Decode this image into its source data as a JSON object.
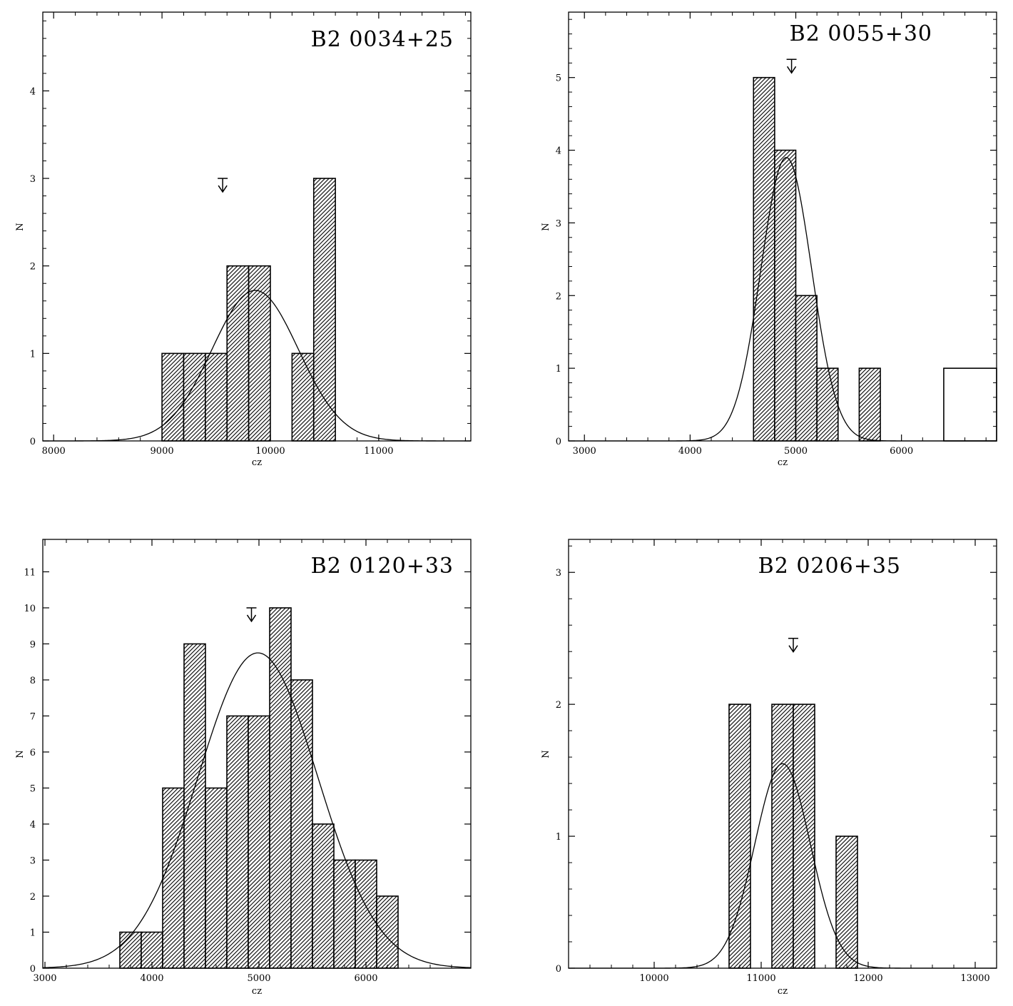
{
  "figure": {
    "hatch_color": "#000000",
    "line_color": "#000000",
    "background": "#ffffff"
  },
  "chart_data": [
    {
      "type": "bar",
      "title": "B2 0034+25",
      "xlabel": "cz",
      "ylabel": "N",
      "xlim": [
        7900,
        11850
      ],
      "ylim": [
        0,
        4.9
      ],
      "xticks": [
        8000,
        9000,
        10000,
        11000
      ],
      "yticks": [
        0,
        1,
        2,
        3,
        4
      ],
      "bin_width": 200,
      "bins": [
        {
          "x0": 9000,
          "x1": 9200,
          "count": 1,
          "filled": true
        },
        {
          "x0": 9200,
          "x1": 9400,
          "count": 1,
          "filled": true
        },
        {
          "x0": 9400,
          "x1": 9600,
          "count": 1,
          "filled": true
        },
        {
          "x0": 9600,
          "x1": 9800,
          "count": 2,
          "filled": true
        },
        {
          "x0": 9800,
          "x1": 10000,
          "count": 2,
          "filled": true
        },
        {
          "x0": 10200,
          "x1": 10400,
          "count": 1,
          "filled": true
        },
        {
          "x0": 10400,
          "x1": 10600,
          "count": 3,
          "filled": true
        }
      ],
      "gaussian": {
        "mean": 9860,
        "sigma": 400,
        "peak": 1.72
      },
      "marker": {
        "x": 9560,
        "y": 3.0
      }
    },
    {
      "type": "bar",
      "title": "B2 0055+30",
      "xlabel": "cz",
      "ylabel": "N",
      "xlim": [
        2850,
        6900
      ],
      "ylim": [
        0,
        5.9
      ],
      "xticks": [
        3000,
        4000,
        5000,
        6000
      ],
      "yticks": [
        0,
        1,
        2,
        3,
        4,
        5
      ],
      "bin_width": 200,
      "bins": [
        {
          "x0": 4600,
          "x1": 4800,
          "count": 5,
          "filled": true
        },
        {
          "x0": 4800,
          "x1": 5000,
          "count": 4,
          "filled": true
        },
        {
          "x0": 5000,
          "x1": 5200,
          "count": 2,
          "filled": true
        },
        {
          "x0": 5200,
          "x1": 5400,
          "count": 1,
          "filled": true
        },
        {
          "x0": 5600,
          "x1": 5800,
          "count": 1,
          "filled": true
        },
        {
          "x0": 6400,
          "x1": 6900,
          "count": 1,
          "filled": false
        }
      ],
      "gaussian": {
        "mean": 4910,
        "sigma": 240,
        "peak": 3.9
      },
      "marker": {
        "x": 4960,
        "y": 5.25
      }
    },
    {
      "type": "bar",
      "title": "B2 0120+33",
      "xlabel": "cz",
      "ylabel": "N",
      "xlim": [
        2980,
        6980
      ],
      "ylim": [
        0,
        11.9
      ],
      "xticks": [
        3000,
        4000,
        5000,
        6000
      ],
      "yticks": [
        0,
        1,
        2,
        3,
        4,
        5,
        6,
        7,
        8,
        9,
        10,
        11
      ],
      "bin_width": 200,
      "bins": [
        {
          "x0": 3700,
          "x1": 3900,
          "count": 1,
          "filled": true
        },
        {
          "x0": 3900,
          "x1": 4100,
          "count": 1,
          "filled": true
        },
        {
          "x0": 4100,
          "x1": 4300,
          "count": 5,
          "filled": true
        },
        {
          "x0": 4300,
          "x1": 4500,
          "count": 9,
          "filled": true
        },
        {
          "x0": 4500,
          "x1": 4700,
          "count": 5,
          "filled": true
        },
        {
          "x0": 4700,
          "x1": 4900,
          "count": 7,
          "filled": true
        },
        {
          "x0": 4900,
          "x1": 5100,
          "count": 7,
          "filled": true
        },
        {
          "x0": 5100,
          "x1": 5300,
          "count": 10,
          "filled": true
        },
        {
          "x0": 5300,
          "x1": 5500,
          "count": 8,
          "filled": true
        },
        {
          "x0": 5500,
          "x1": 5700,
          "count": 4,
          "filled": true
        },
        {
          "x0": 5700,
          "x1": 5900,
          "count": 3,
          "filled": true
        },
        {
          "x0": 5900,
          "x1": 6100,
          "count": 3,
          "filled": true
        },
        {
          "x0": 6100,
          "x1": 6300,
          "count": 2,
          "filled": true
        }
      ],
      "gaussian": {
        "mean": 4990,
        "sigma": 560,
        "peak": 8.75
      },
      "marker": {
        "x": 4930,
        "y": 10.0
      }
    },
    {
      "type": "bar",
      "title": "B2 0206+35",
      "xlabel": "cz",
      "ylabel": "N",
      "xlim": [
        9200,
        13200
      ],
      "ylim": [
        0,
        3.25
      ],
      "xticks": [
        10000,
        11000,
        12000,
        13000
      ],
      "yticks": [
        0,
        1,
        2,
        3
      ],
      "bin_width": 200,
      "bins": [
        {
          "x0": 10700,
          "x1": 10900,
          "count": 2,
          "filled": true
        },
        {
          "x0": 11100,
          "x1": 11300,
          "count": 2,
          "filled": true
        },
        {
          "x0": 11300,
          "x1": 11500,
          "count": 2,
          "filled": true
        },
        {
          "x0": 11700,
          "x1": 11900,
          "count": 1,
          "filled": true
        }
      ],
      "gaussian": {
        "mean": 11200,
        "sigma": 260,
        "peak": 1.55
      },
      "marker": {
        "x": 11300,
        "y": 2.5
      }
    }
  ]
}
